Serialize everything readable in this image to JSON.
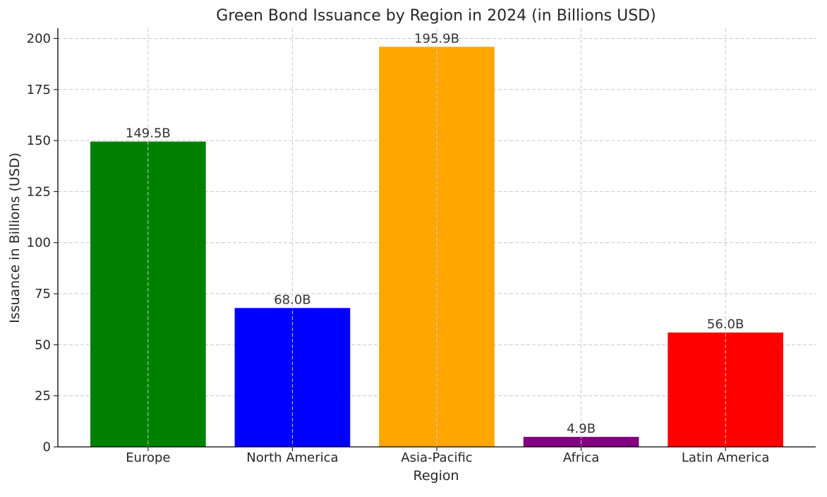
{
  "chart_data": {
    "type": "bar",
    "title": "Green Bond Issuance by Region in 2024 (in Billions USD)",
    "xlabel": "Region",
    "ylabel": "Issuance in Billions (USD)",
    "categories": [
      "Europe",
      "North America",
      "Asia-Pacific",
      "Africa",
      "Latin America"
    ],
    "values": [
      149.5,
      68.0,
      195.9,
      4.9,
      56.0
    ],
    "data_labels": [
      "149.5B",
      "68.0B",
      "195.9B",
      "4.9B",
      "56.0B"
    ],
    "colors": [
      "#008000",
      "#0000ff",
      "#ffa500",
      "#800080",
      "#ff0000"
    ],
    "ylim": [
      0,
      205
    ],
    "yticks": [
      0,
      25,
      50,
      75,
      100,
      125,
      150,
      175,
      200
    ],
    "grid": true,
    "legend": "none"
  }
}
